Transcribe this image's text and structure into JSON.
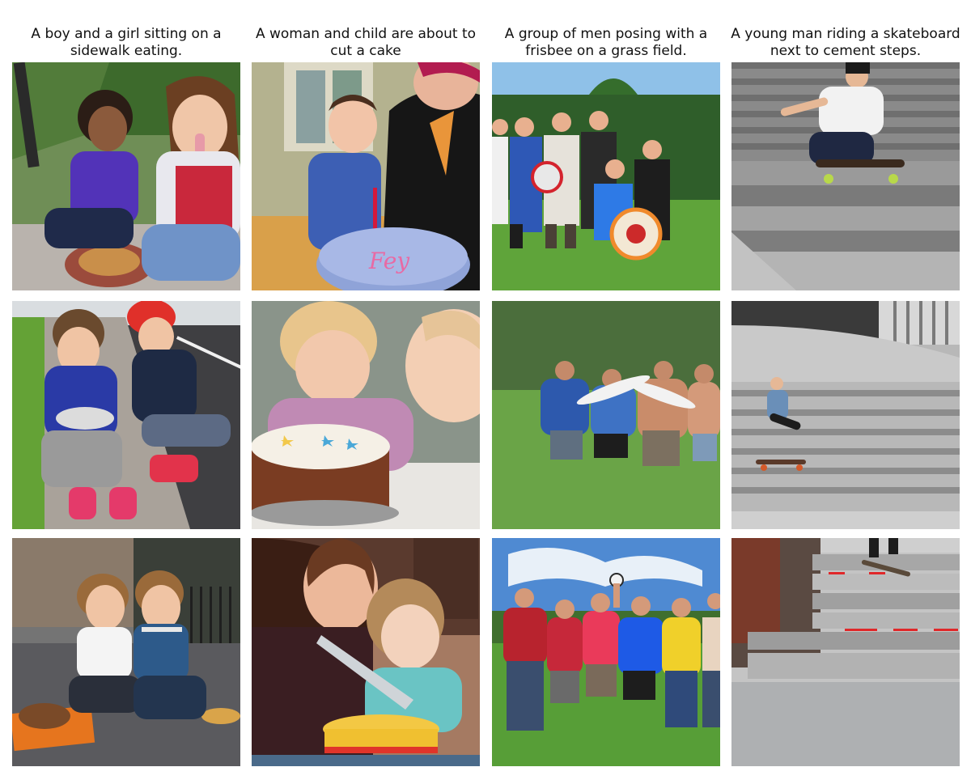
{
  "captions": [
    "A boy and a girl sitting on a sidewalk eating.",
    "A woman and child are about to cut a cake",
    "A group of men posing with a frisbee on a grass field.",
    "A young man riding a skateboard next to cement steps."
  ],
  "cake_icing_text": "Fey",
  "palette": {
    "grass": "#5f9a3a",
    "sky": "#a9c8e6",
    "concrete": "#a7a7a7",
    "skin": "#e8b08f"
  }
}
